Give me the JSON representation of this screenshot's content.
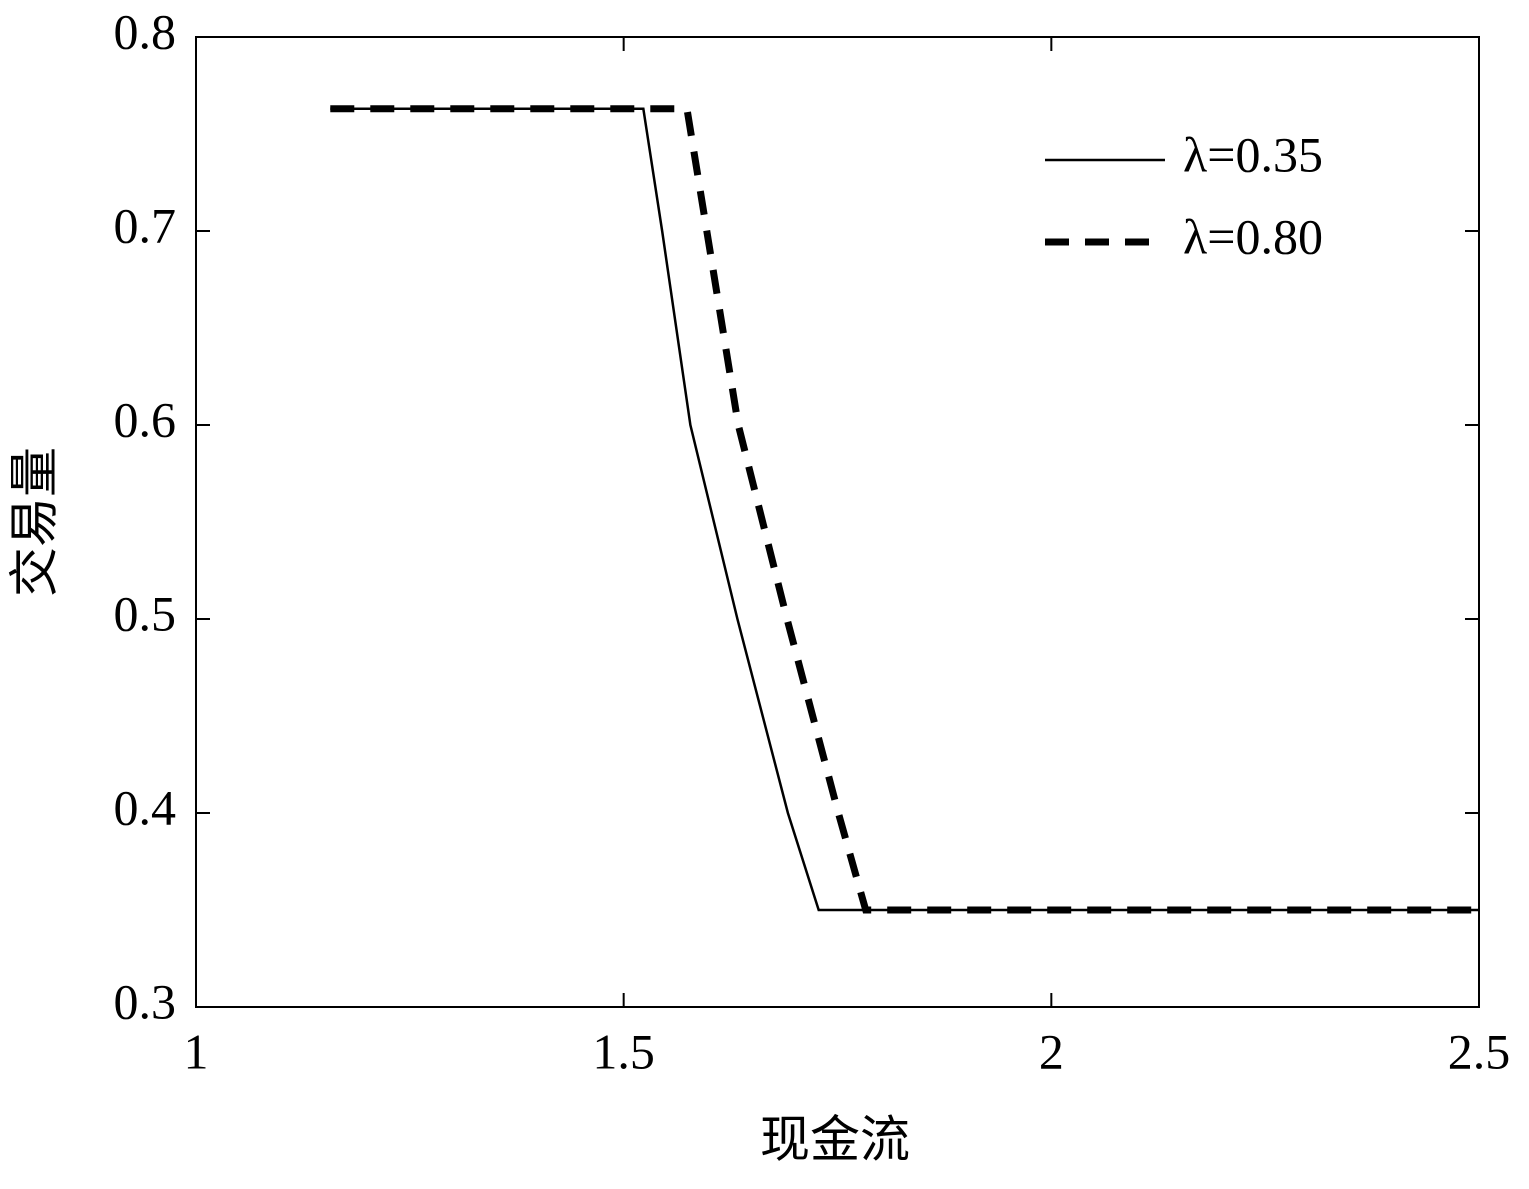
{
  "chart_data": {
    "type": "line",
    "xlabel": "现金流",
    "ylabel": "交易量",
    "xlim": [
      1,
      2.5
    ],
    "ylim": [
      0.3,
      0.8
    ],
    "xticks": [
      1,
      1.5,
      2,
      2.5
    ],
    "yticks": [
      0.3,
      0.4,
      0.5,
      0.6,
      0.7,
      0.8
    ],
    "grid": false,
    "legend": "upper right",
    "series": [
      {
        "name": "λ=0.35",
        "color": "#000000",
        "dash": false,
        "x": [
          1.157,
          1.523,
          1.545,
          1.578,
          1.633,
          1.692,
          1.728,
          2.5
        ],
        "values": [
          0.763,
          0.763,
          0.7,
          0.6,
          0.5,
          0.4,
          0.35,
          0.35
        ]
      },
      {
        "name": "λ=0.80",
        "color": "#000000",
        "dash": true,
        "x": [
          1.157,
          1.574,
          1.634,
          1.691,
          1.751,
          1.783,
          2.5
        ],
        "values": [
          0.763,
          0.763,
          0.6,
          0.5,
          0.4,
          0.35,
          0.35
        ]
      }
    ]
  }
}
